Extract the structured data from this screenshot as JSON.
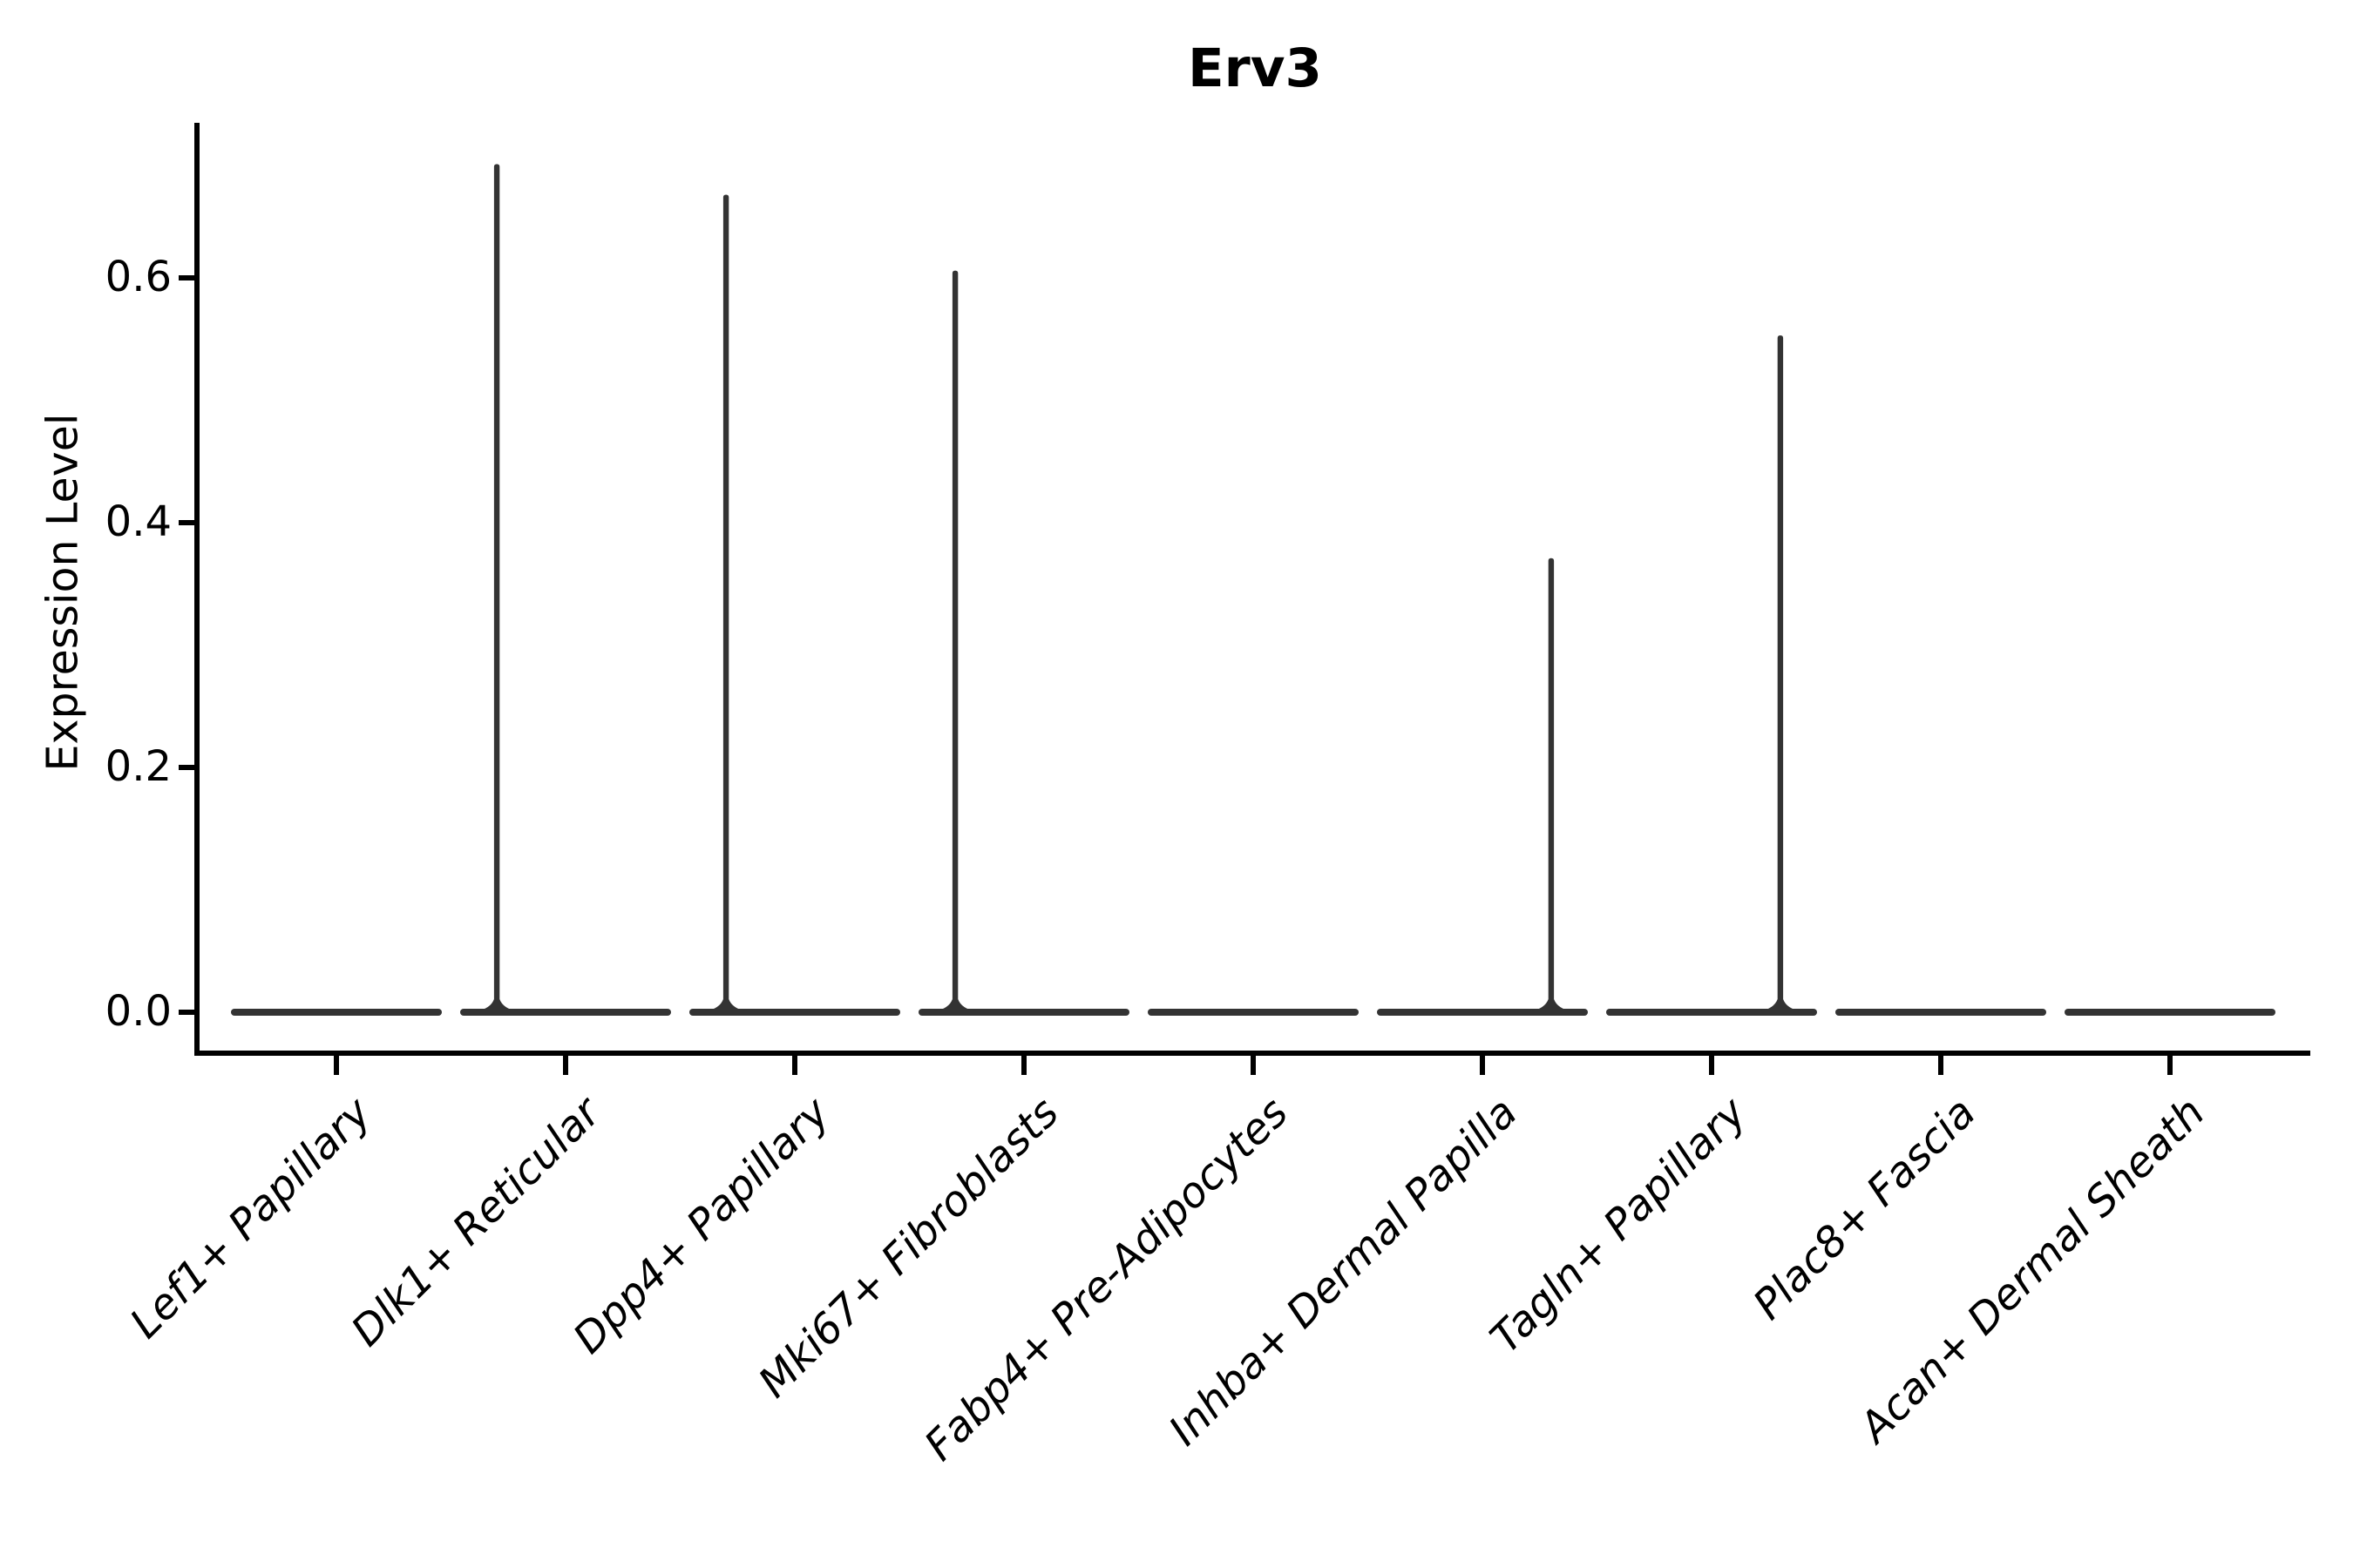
{
  "figure": {
    "background_color": "#ffffff",
    "violin_color": "#333333",
    "axis_color": "#000000"
  },
  "chart_data": {
    "type": "violin",
    "title": "Erv3",
    "xlabel": "",
    "ylabel": "Expression Level",
    "grid": false,
    "legend": "none",
    "ylim": [
      -0.033,
      0.727
    ],
    "y_ticks": [
      0.0,
      0.2,
      0.4,
      0.6
    ],
    "categories": [
      "Lef1+ Papillary",
      "Dlk1+ Reticular",
      "Dpp4+ Papillary",
      "Mki67+ Fibroblasts",
      "Fabp4+ Pre-Adipocytes",
      "Inhba+ Dermal Papilla",
      "Tagln+ Papillary",
      "Plac8+ Fascia",
      "Acan+ Dermal Sheath"
    ],
    "violins": [
      {
        "category": "Lef1+ Papillary",
        "bulk_at": 0,
        "max_expression": 0,
        "spike_offset": 0
      },
      {
        "category": "Dlk1+ Reticular",
        "bulk_at": 0,
        "max_expression": 0.693,
        "spike_offset": -0.3
      },
      {
        "category": "Dpp4+ Papillary",
        "bulk_at": 0,
        "max_expression": 0.668,
        "spike_offset": -0.3
      },
      {
        "category": "Mki67+ Fibroblasts",
        "bulk_at": 0,
        "max_expression": 0.606,
        "spike_offset": -0.3
      },
      {
        "category": "Fabp4+ Pre-Adipocytes",
        "bulk_at": 0,
        "max_expression": 0,
        "spike_offset": 0
      },
      {
        "category": "Inhba+ Dermal Papilla",
        "bulk_at": 0,
        "max_expression": 0.371,
        "spike_offset": 0.3
      },
      {
        "category": "Tagln+ Papillary",
        "bulk_at": 0,
        "max_expression": 0.553,
        "spike_offset": 0.3
      },
      {
        "category": "Plac8+ Fascia",
        "bulk_at": 0,
        "max_expression": 0,
        "spike_offset": 0
      },
      {
        "category": "Acan+ Dermal Sheath",
        "bulk_at": 0,
        "max_expression": 0,
        "spike_offset": 0
      }
    ]
  }
}
